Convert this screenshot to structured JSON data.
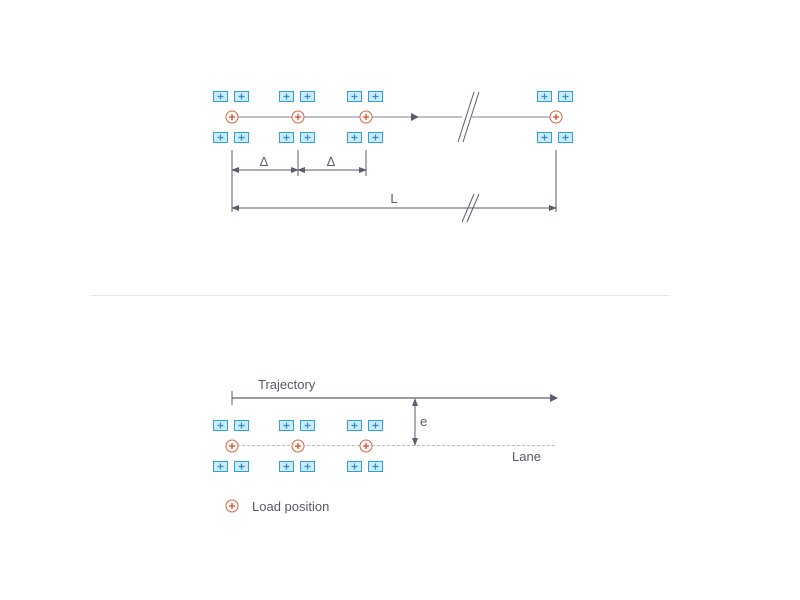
{
  "top_diagram": {
    "spacing_label": "Δ",
    "length_label": "L"
  },
  "bottom_diagram": {
    "trajectory_label": "Trajectory",
    "eccentricity_label": "e",
    "lane_label": "Lane"
  },
  "legend": {
    "load_position_label": "Load position"
  },
  "colors": {
    "wheel_fill": "#cdeaf7",
    "wheel_stroke": "#2aa0dc",
    "load_marker": "#e0603a",
    "line": "#5a5d6e"
  }
}
